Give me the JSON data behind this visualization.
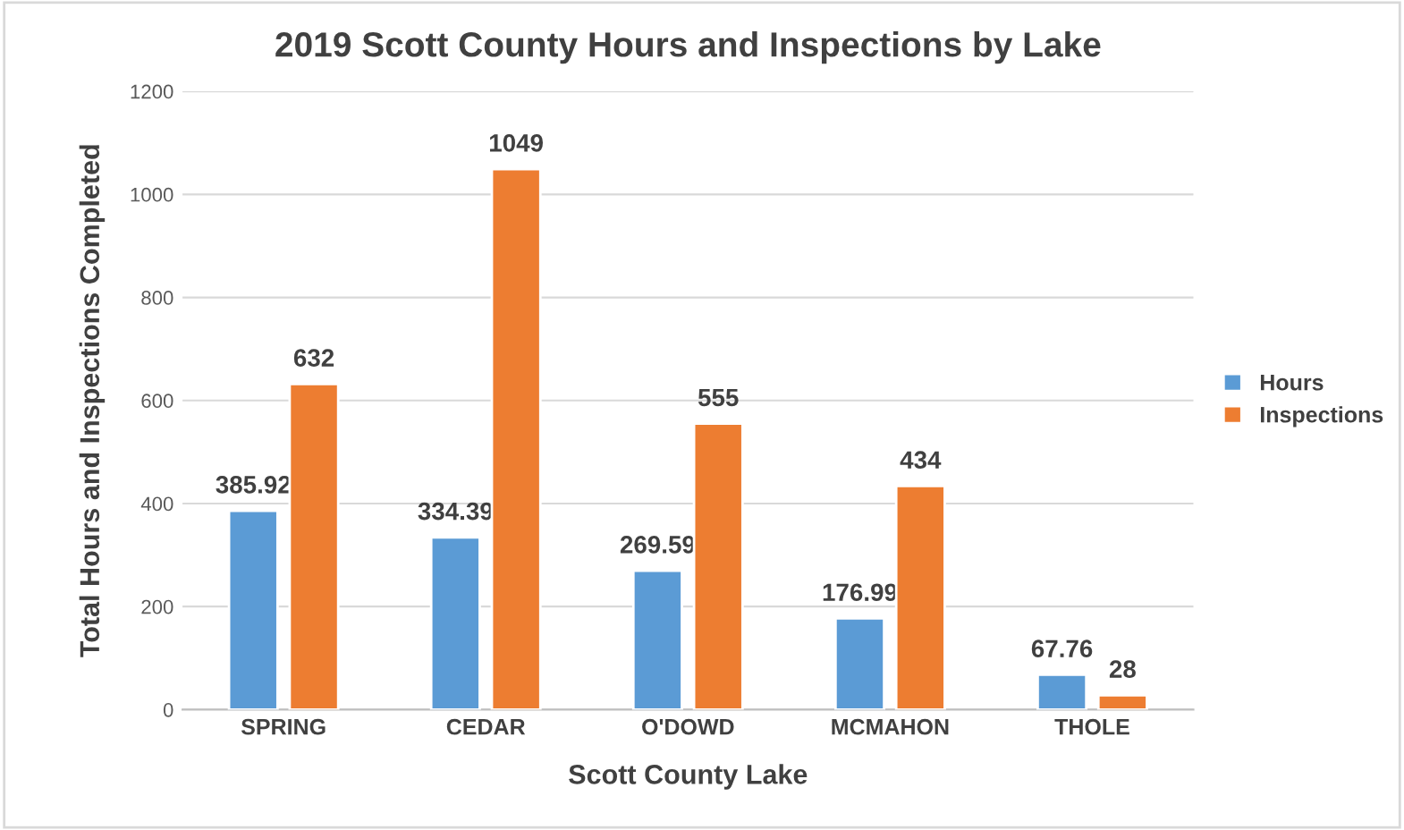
{
  "chart_data": {
    "type": "bar",
    "title": "2019 Scott County Hours and Inspections by Lake",
    "xlabel": "Scott County Lake",
    "ylabel": "Total Hours and Inspections Completed",
    "categories": [
      "SPRING",
      "CEDAR",
      "O'DOWD",
      "MCMAHON",
      "THOLE"
    ],
    "series": [
      {
        "name": "Hours",
        "color": "#5b9bd5",
        "values": [
          385.92,
          334.39,
          269.59,
          176.99,
          67.76
        ]
      },
      {
        "name": "Inspections",
        "color": "#ed7d31",
        "values": [
          632,
          1049,
          555,
          434,
          28
        ]
      }
    ],
    "ylim": [
      0,
      1200
    ],
    "yticks": [
      0,
      200,
      400,
      600,
      800,
      1000,
      1200
    ],
    "grid": "y",
    "legend": "right",
    "data_labels": true
  }
}
